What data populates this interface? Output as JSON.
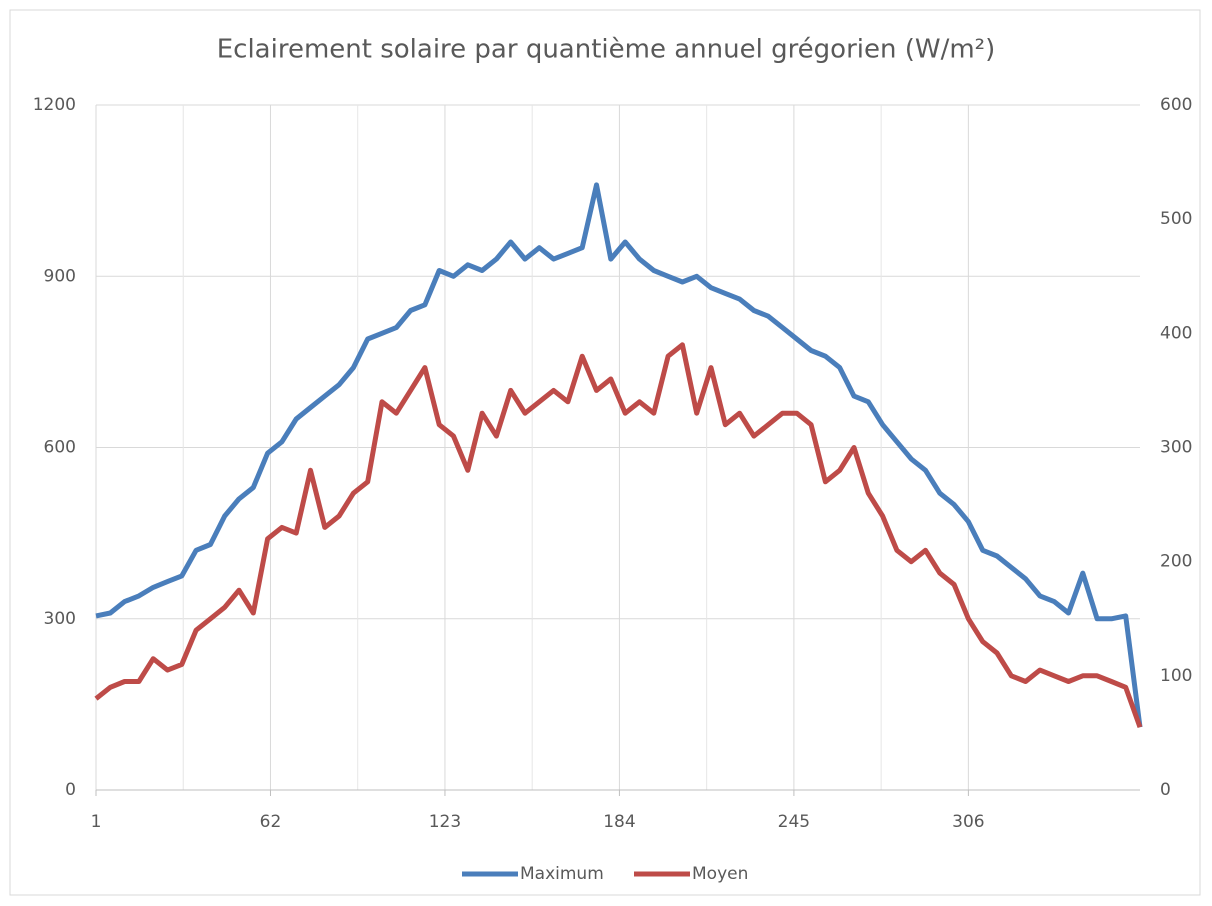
{
  "chart_data": {
    "type": "line",
    "title": "Eclairement solaire par quantième annuel grégorien (W/m²)",
    "x": [
      1,
      6,
      11,
      16,
      21,
      26,
      31,
      36,
      41,
      46,
      51,
      56,
      61,
      66,
      71,
      76,
      81,
      86,
      91,
      96,
      101,
      106,
      111,
      116,
      121,
      126,
      131,
      136,
      141,
      146,
      151,
      156,
      161,
      166,
      171,
      176,
      181,
      186,
      191,
      196,
      201,
      206,
      211,
      216,
      221,
      226,
      231,
      236,
      241,
      246,
      251,
      256,
      261,
      266,
      271,
      276,
      281,
      286,
      291,
      296,
      301,
      306,
      311,
      316,
      321,
      326,
      331,
      336,
      341,
      346,
      351,
      356,
      361,
      366
    ],
    "series": [
      {
        "name": "Maximum",
        "color": "#4a7ebb",
        "values": [
          305,
          310,
          330,
          340,
          355,
          365,
          375,
          420,
          430,
          480,
          510,
          530,
          590,
          610,
          650,
          670,
          690,
          710,
          740,
          790,
          800,
          810,
          840,
          850,
          910,
          900,
          920,
          910,
          930,
          960,
          930,
          950,
          930,
          940,
          950,
          1060,
          930,
          960,
          930,
          910,
          900,
          890,
          900,
          880,
          870,
          860,
          840,
          830,
          810,
          790,
          770,
          760,
          740,
          690,
          680,
          640,
          610,
          580,
          560,
          520,
          500,
          470,
          420,
          410,
          390,
          370,
          340,
          330,
          310,
          380,
          300,
          300,
          305,
          110
        ]
      },
      {
        "name": "Moyen",
        "color": "#be4b48",
        "axis": "y2",
        "values": [
          80,
          90,
          95,
          95,
          115,
          105,
          110,
          140,
          150,
          160,
          175,
          155,
          220,
          230,
          225,
          280,
          230,
          240,
          260,
          270,
          340,
          330,
          350,
          370,
          320,
          310,
          280,
          330,
          310,
          350,
          330,
          340,
          350,
          340,
          380,
          350,
          360,
          330,
          340,
          330,
          380,
          390,
          330,
          370,
          320,
          330,
          310,
          320,
          330,
          330,
          320,
          270,
          280,
          300,
          260,
          240,
          210,
          200,
          210,
          190,
          180,
          150,
          130,
          120,
          100,
          95,
          105,
          100,
          95,
          100,
          100,
          95,
          90,
          55
        ]
      }
    ],
    "xlim": [
      1,
      366
    ],
    "xticks": [
      1,
      62,
      123,
      184,
      245,
      306
    ],
    "ylim": [
      0,
      1200
    ],
    "yticks": [
      0,
      300,
      600,
      900,
      1200
    ],
    "y2lim": [
      0,
      600
    ],
    "y2ticks": [
      0,
      100,
      200,
      300,
      400,
      500,
      600
    ],
    "grid": true,
    "legend": "bottom"
  }
}
